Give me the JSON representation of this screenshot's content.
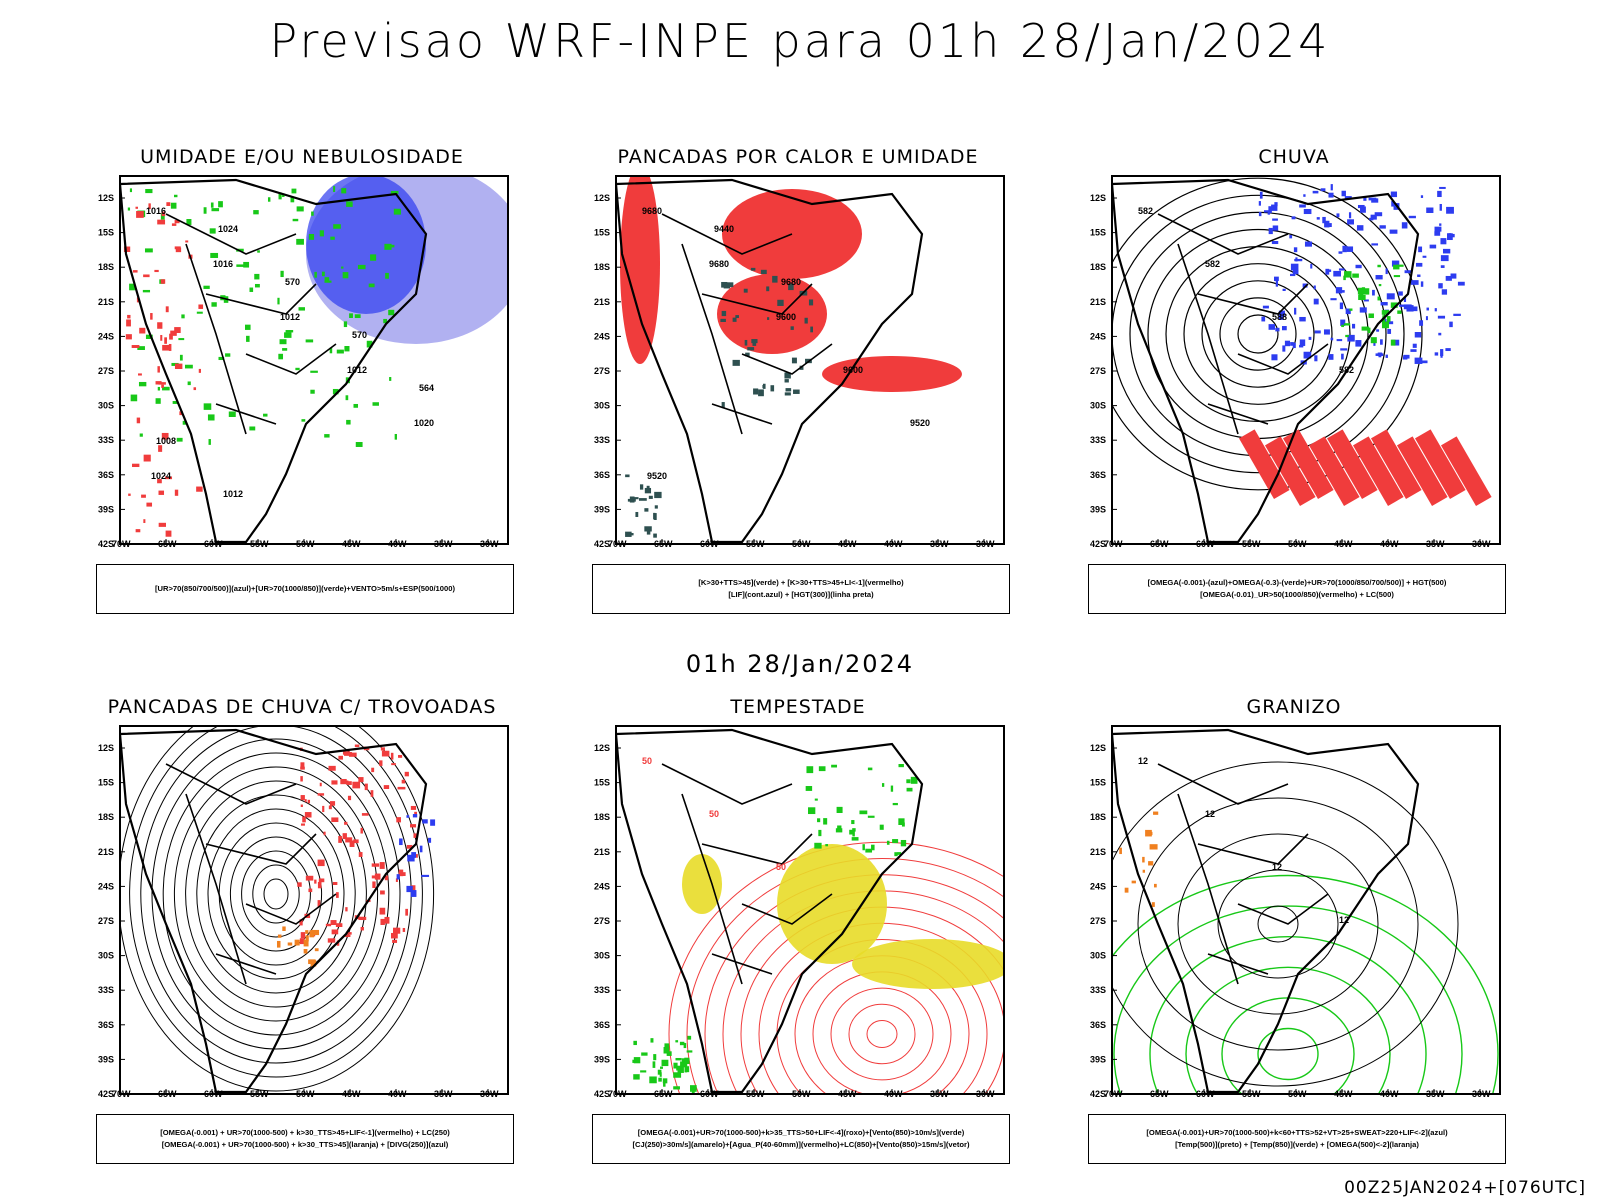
{
  "header": {
    "title": "Previsao WRF-INPE  para 01h 28/Jan/2024"
  },
  "middle": {
    "title": "01h 28/Jan/2024"
  },
  "footer": {
    "run": "00Z25JAN2024+[076UTC]"
  },
  "axes": {
    "lat": [
      "12S",
      "15S",
      "18S",
      "21S",
      "24S",
      "27S",
      "30S",
      "33S",
      "36S",
      "39S",
      "42S"
    ],
    "lon": [
      "70W",
      "65W",
      "60W",
      "55W",
      "50W",
      "45W",
      "40W",
      "35W",
      "30W"
    ]
  },
  "colors": {
    "blue": "#2d3cf0",
    "green": "#18c818",
    "red": "#f03c3c",
    "yellow": "#e8dc28",
    "orange": "#f08020",
    "lavender": "#a8a8f0",
    "darkgreen": "#2e5050"
  },
  "panels": [
    {
      "id": "umidade",
      "title": "UMIDADE E/OU NEBULOSIDADE",
      "legend": [
        "[UR>70(850/700/500)](azul)+[UR>70(1000/850)](verde)+VENTO>5m/s+ESP(500/1000)"
      ],
      "labels": [
        "1016",
        "1016",
        "1012",
        "1012",
        "1020",
        "1024",
        "1024",
        "570",
        "570",
        "564",
        "1008",
        "1012"
      ]
    },
    {
      "id": "pancadas-calor",
      "title": "PANCADAS POR CALOR E UMIDADE",
      "legend": [
        "[K>30+TTS>45](verde) + [K>30+TTS>45+LI<-1](vermelho)",
        "[LIF](cont.azul) + [HGT(300)](linha preta)"
      ],
      "labels": [
        "9680",
        "9680",
        "9600",
        "9600",
        "9520",
        "9520",
        "9440",
        "9680"
      ]
    },
    {
      "id": "chuva",
      "title": "CHUVA",
      "legend": [
        "[OMEGA(-0.001)-(azul)+OMEGA(-0.3)-(verde)+UR>70(1000/850/700/500)] + HGT(500)",
        "[OMEGA(-0.01)_UR>50(1000/850)(vermelho) + LC(500)"
      ],
      "labels": [
        "582",
        "582",
        "588",
        "582"
      ]
    },
    {
      "id": "trovoadas",
      "title": "PANCADAS DE CHUVA C/ TROVOADAS",
      "legend": [
        "[OMEGA(-0.001) + UR>70(1000-500) + k>30_TTS>45+LIF<-1](vermelho) + LC(250)",
        "[OMEGA(-0.001) + UR>70(1000-500) + k>30_TTS>45](laranja) + [DIVG(250)](azul)"
      ],
      "labels": []
    },
    {
      "id": "tempestade",
      "title": "TEMPESTADE",
      "legend": [
        "[OMEGA(-0.001)+UR>70(1000-500)+k>35_TTS>50+LIF<-4](roxo)+[Vento(850)>10m/s](verde)",
        "[CJ(250)>30m/s](amarelo)+[Agua_P(40-60mm)](vermelho)+LC(850)+[Vento(850)>15m/s](vetor)"
      ],
      "labels": [
        "50",
        "50",
        "50"
      ]
    },
    {
      "id": "granizo",
      "title": "GRANIZO",
      "legend": [
        "[OMEGA(-0.001)+UR>70(1000-500)+k<60+TTS>52+VT>25+SWEAT>220+LIF<-2](azul)",
        "[Temp(500)](preto) + [Temp(850)](verde) + [OMEGA(500)<-2](laranja)"
      ],
      "labels": [
        "12",
        "12",
        "12",
        "12"
      ]
    }
  ]
}
